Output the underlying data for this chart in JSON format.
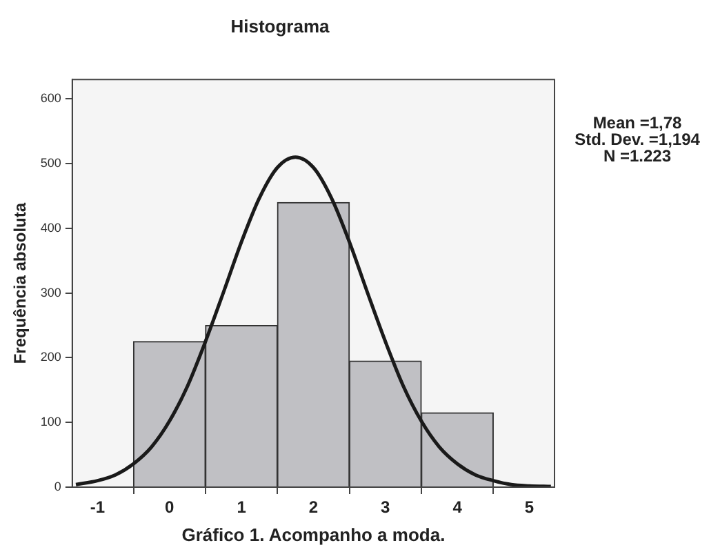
{
  "chart_data": {
    "type": "histogram",
    "title": "Histograma",
    "xlabel": "Gráfico 1. Acompanho a moda.",
    "ylabel": "Frequência absoluta",
    "annotations": [
      "Mean =1,78\nStd. Dev. =1,194\nN =1.223"
    ],
    "bins": [
      -0.5,
      0.5,
      1.5,
      2.5,
      3.5,
      4.5
    ],
    "series": [
      {
        "color": "#c0c0c4",
        "values": [
          225,
          250,
          440,
          195,
          115
        ]
      },
      {
        "type": "line",
        "color": "#1a1a1a",
        "x": [
          -1.3,
          -1,
          -0.75,
          -0.5,
          -0.25,
          0,
          0.25,
          0.5,
          0.75,
          1,
          1.25,
          1.5,
          1.75,
          2,
          2.25,
          2.5,
          2.75,
          3,
          3.25,
          3.5,
          3.75,
          4,
          4.25,
          4.5,
          4.75,
          5,
          5.3
        ],
        "values": [
          4,
          10,
          19,
          36,
          62,
          102,
          156,
          225,
          301,
          379,
          447,
          494,
          510,
          494,
          447,
          379,
          301,
          225,
          156,
          102,
          62,
          36,
          19,
          10,
          4,
          2,
          1
        ]
      }
    ],
    "xlim": [
      -1.35,
      5.35
    ],
    "xticks": [
      -1,
      0,
      1,
      2,
      3,
      4,
      5
    ],
    "ylim": [
      0,
      630
    ],
    "yticks": [
      0,
      100,
      200,
      300,
      400,
      500,
      600
    ],
    "grid": false,
    "legend": false,
    "marker": "none"
  }
}
